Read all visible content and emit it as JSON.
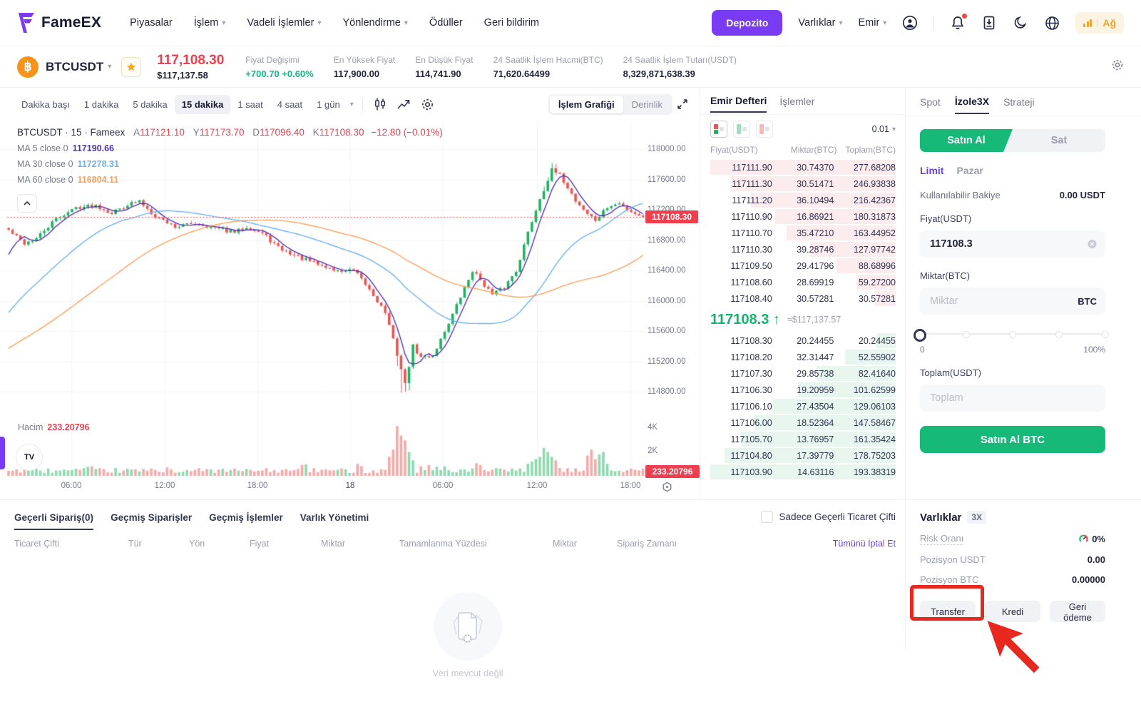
{
  "colors": {
    "accent": "#7a3bf5",
    "buy_green": "#17b978",
    "up": "#1eb35f",
    "down": "#ef5350",
    "red": "#ef3e4e",
    "ma5": "#4f35b5",
    "ma30": "#6db2f2",
    "ma60": "#f7a15f",
    "annotation": "#e8281e"
  },
  "icons": {
    "caret": "▾",
    "btc": "฿",
    "tv": "TV",
    "up_arrow": "↑"
  },
  "header": {
    "brand": "FameEX",
    "nav": [
      "Piyasalar",
      "İşlem",
      "Vadeli İşlemler",
      "Yönlendirme",
      "Ödüller",
      "Geri bildirim"
    ],
    "deposit": "Depozito",
    "assets_menu": "Varlıklar",
    "order_menu": "Emir",
    "network": "Ağ"
  },
  "ticker": {
    "pair": "BTCUSDT",
    "last_price": "117,108.30",
    "usd_price": "$117,137.58",
    "stats": [
      {
        "label": "Fiyat Değişimi",
        "value": "+700.70 +0.60%",
        "green": true
      },
      {
        "label": "En Yüksek Fiyat",
        "value": "117,900.00"
      },
      {
        "label": "En Düşük Fiyat",
        "value": "114,741.90"
      },
      {
        "label": "24 Saatlik İşlem Hacmi(BTC)",
        "value": "71,620.64499"
      },
      {
        "label": "24 Saatlik İşlem Tutarı(USDT)",
        "value": "8,329,871,638.39"
      }
    ]
  },
  "chart": {
    "timeframes": [
      "Dakika başı",
      "1 dakika",
      "5 dakika",
      "15 dakika",
      "1 saat",
      "4 saat",
      "1 gün"
    ],
    "active_timeframe": "15 dakika",
    "modes": [
      "İşlem Grafiği",
      "Derinlik"
    ],
    "legend": {
      "symbol": "BTCUSDT · 15 · Fameex",
      "ohlc": [
        [
          "A",
          "117121.10"
        ],
        [
          "Y",
          "117173.70"
        ],
        [
          "D",
          "117096.40"
        ],
        [
          "K",
          "117108.30"
        ]
      ],
      "change": "−12.80 (−0.01%)",
      "ma": [
        {
          "label": "MA 5 close 0",
          "value": "117190.66",
          "color": "#4f35b5"
        },
        {
          "label": "MA 30 close 0",
          "value": "117278.31",
          "color": "#6db2f2"
        },
        {
          "label": "MA 60 close 0",
          "value": "116804.11",
          "color": "#f7a15f"
        }
      ]
    },
    "vol_label": "Hacim",
    "vol_value": "233.20796",
    "price_tag": "117108.30",
    "vol_tag": "233.20796",
    "axis": {
      "price_ticks": [
        "118000.00",
        "117600.00",
        "117200.00",
        "116800.00",
        "116400.00",
        "116000.00",
        "115600.00",
        "115200.00",
        "114800.00"
      ],
      "time_ticks": [
        "06:00",
        "12:00",
        "18:00",
        "18",
        "06:00",
        "12:00",
        "18:00"
      ],
      "time_xs": [
        100,
        231,
        361,
        491,
        621,
        753,
        884
      ],
      "vol_ticks": [
        "4K",
        "2K"
      ]
    },
    "series": {
      "current_price": 117108.3,
      "anchors": [
        [
          0,
          116930
        ],
        [
          4,
          116760
        ],
        [
          7,
          116820
        ],
        [
          12,
          117080
        ],
        [
          17,
          117230
        ],
        [
          22,
          117260
        ],
        [
          26,
          117160
        ],
        [
          30,
          117270
        ],
        [
          33,
          117310
        ],
        [
          37,
          117120
        ],
        [
          42,
          116980
        ],
        [
          47,
          117020
        ],
        [
          52,
          116960
        ],
        [
          57,
          116900
        ],
        [
          60,
          116980
        ],
        [
          64,
          116890
        ],
        [
          68,
          116700
        ],
        [
          73,
          116580
        ],
        [
          78,
          116480
        ],
        [
          83,
          116390
        ],
        [
          87,
          116400
        ],
        [
          91,
          116150
        ],
        [
          95,
          115850
        ],
        [
          98,
          115300
        ],
        [
          100,
          114900
        ],
        [
          102,
          115400
        ],
        [
          104,
          115250
        ],
        [
          107,
          115280
        ],
        [
          110,
          115600
        ],
        [
          114,
          116050
        ],
        [
          117,
          116400
        ],
        [
          119,
          116280
        ],
        [
          122,
          116080
        ],
        [
          125,
          116180
        ],
        [
          128,
          116400
        ],
        [
          131,
          116900
        ],
        [
          134,
          117350
        ],
        [
          137,
          117720
        ],
        [
          139,
          117650
        ],
        [
          141,
          117500
        ],
        [
          143,
          117320
        ],
        [
          146,
          117150
        ],
        [
          148,
          117060
        ],
        [
          151,
          117230
        ],
        [
          154,
          117280
        ],
        [
          157,
          117180
        ],
        [
          160,
          117110
        ]
      ],
      "volume_spikes": {
        "20": 650,
        "21": 700,
        "40": 600,
        "74": 800,
        "75": 850,
        "88": 900,
        "89": 700,
        "96": 1500,
        "97": 2100,
        "98": 4100,
        "99": 3300,
        "100": 2900,
        "101": 1900,
        "102": 1200,
        "104": 700,
        "106": 800,
        "108": 650,
        "110": 700,
        "118": 950,
        "119": 800,
        "131": 900,
        "132": 1100,
        "133": 1300,
        "134": 1500,
        "135": 2250,
        "136": 1900,
        "137": 1500,
        "138": 1200,
        "146": 1600,
        "147": 2100,
        "148": 1300,
        "149": 1700,
        "150": 1900,
        "151": 900
      }
    }
  },
  "orderbook": {
    "tabs": [
      "Emir Defteri",
      "İşlemler"
    ],
    "step": "0.01",
    "headers": [
      "Fiyat(USDT)",
      "Miktar(BTC)",
      "Toplam(BTC)"
    ],
    "asks": [
      [
        "117111.90",
        "30.74370",
        "277.68208"
      ],
      [
        "117111.30",
        "30.51471",
        "246.93838"
      ],
      [
        "117111.20",
        "36.10494",
        "216.42367"
      ],
      [
        "117110.90",
        "16.86921",
        "180.31873"
      ],
      [
        "117110.70",
        "35.47210",
        "163.44952"
      ],
      [
        "117110.30",
        "39.28746",
        "127.97742"
      ],
      [
        "117109.50",
        "29.41796",
        "88.68996"
      ],
      [
        "117108.60",
        "28.69919",
        "59.27200"
      ],
      [
        "117108.40",
        "30.57281",
        "30.57281"
      ]
    ],
    "mid": {
      "price": "117108.3",
      "approx": "≈$117,137.57"
    },
    "bids": [
      [
        "117108.30",
        "20.24455",
        "20.24455"
      ],
      [
        "117108.20",
        "32.31447",
        "52.55902"
      ],
      [
        "117107.30",
        "29.85738",
        "82.41640"
      ],
      [
        "117106.30",
        "19.20959",
        "101.62599"
      ],
      [
        "117106.10",
        "27.43504",
        "129.06103"
      ],
      [
        "117106.00",
        "18.52364",
        "147.58467"
      ],
      [
        "117105.70",
        "13.76957",
        "161.35424"
      ],
      [
        "117104.80",
        "17.39779",
        "178.75203"
      ],
      [
        "117103.90",
        "14.63116",
        "193.38319"
      ]
    ]
  },
  "trade": {
    "tabs": [
      "Spot",
      "İzole3X",
      "Strateji"
    ],
    "buy": "Satın Al",
    "sell": "Sat",
    "order_types": [
      "Limit",
      "Pazar"
    ],
    "balance_label": "Kullanılabilir Bakiye",
    "balance_value": "0.00 USDT",
    "price_label": "Fiyat(USDT)",
    "price_value": "117108.3",
    "amount_label": "Miktar(BTC)",
    "amount_placeholder": "Miktar",
    "amount_unit": "BTC",
    "slider_min": "0",
    "slider_max": "100%",
    "total_label": "Toplam(USDT)",
    "total_placeholder": "Toplam",
    "submit": "Satın Al BTC"
  },
  "assets": {
    "title": "Varlıklar",
    "badge": "3X",
    "rows": [
      {
        "label": "Risk Oranı",
        "value": "0%",
        "gauge": true,
        "dotted": true
      },
      {
        "label": "Pozisyon USDT",
        "value": "0.00"
      },
      {
        "label": "Pozisyon BTC",
        "value": "0.00000"
      }
    ],
    "buttons": [
      "Transfer",
      "Kredi",
      "Geri ödeme"
    ]
  },
  "orders": {
    "tabs": [
      "Geçerli Sipariş(0)",
      "Geçmiş Siparişler",
      "Geçmiş İşlemler",
      "Varlık Yönetimi"
    ],
    "filter": "Sadece Geçerli Ticaret Çifti",
    "headers": [
      "Ticaret Çifti",
      "Tür",
      "Yön",
      "Fiyat",
      "Miktar",
      "Tamamlanma Yüzdesi",
      "Miktar",
      "Sipariş Zamanı"
    ],
    "cancel_all": "Tümünü İptal Et",
    "empty": "Veri mevcut değil"
  }
}
